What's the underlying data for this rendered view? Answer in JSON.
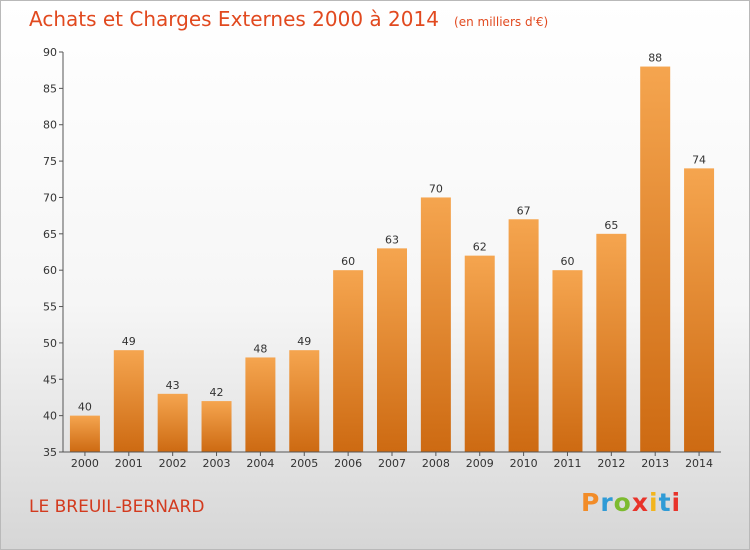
{
  "title": "Achats et Charges Externes 2000 à 2014",
  "subtitle": "(en milliers d'€)",
  "commune": "LE BREUIL-BERNARD",
  "logo": {
    "letters": [
      "P",
      "r",
      "o",
      "x",
      "i",
      "t",
      "i"
    ],
    "colors": [
      "#f28c28",
      "#2f9bd6",
      "#7dbb2f",
      "#e8332a",
      "#f2b51e",
      "#2f9bd6",
      "#e8332a"
    ]
  },
  "colors": {
    "bar_top": "#f5a54f",
    "bar_bottom": "#cd6a12",
    "title": "#e1491f"
  },
  "chart_data": {
    "type": "bar",
    "categories": [
      "2000",
      "2001",
      "2002",
      "2003",
      "2004",
      "2005",
      "2006",
      "2007",
      "2008",
      "2009",
      "2010",
      "2011",
      "2012",
      "2013",
      "2014"
    ],
    "values": [
      40,
      49,
      43,
      42,
      48,
      49,
      60,
      63,
      70,
      62,
      67,
      60,
      65,
      88,
      74
    ],
    "ylim": [
      35,
      90
    ],
    "yticks": [
      35,
      40,
      45,
      50,
      55,
      60,
      65,
      70,
      75,
      80,
      85,
      90
    ],
    "grid": false
  }
}
